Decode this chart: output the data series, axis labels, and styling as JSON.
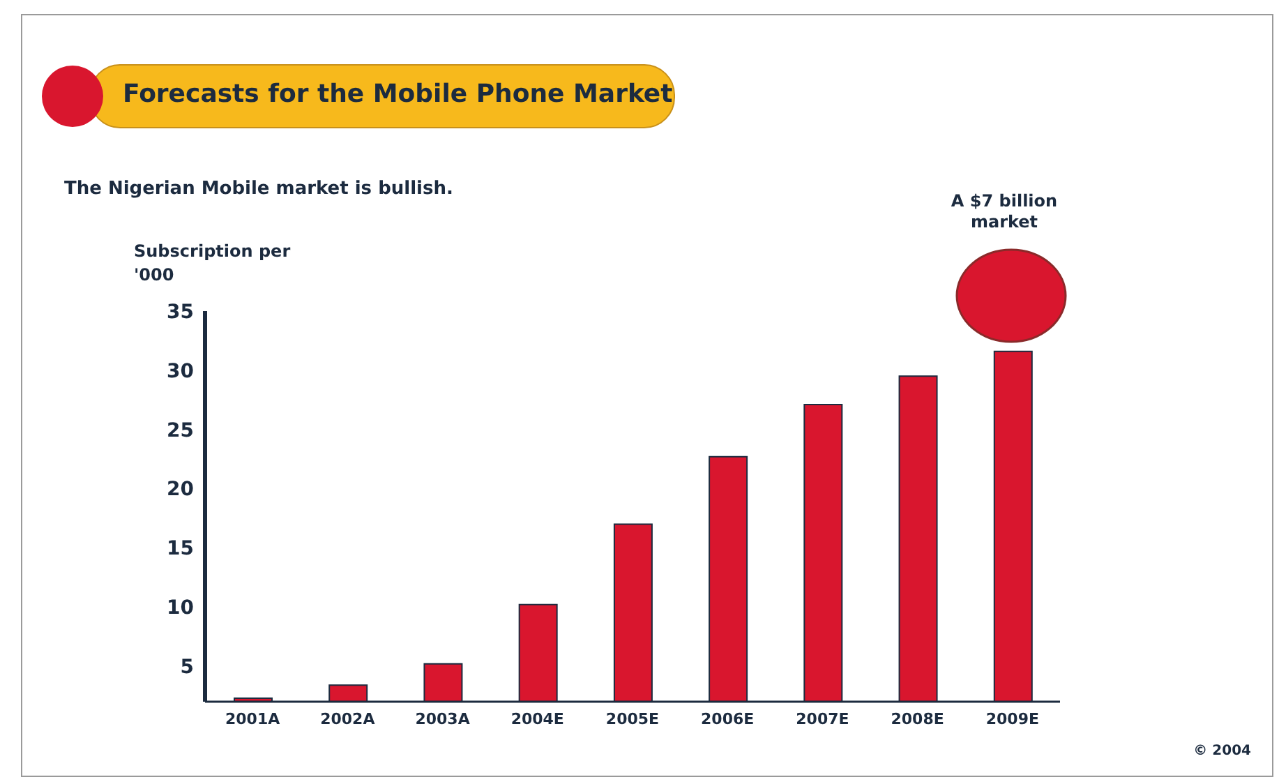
{
  "chart_data": {
    "type": "bar",
    "title": "Forecasts for the Mobile Phone Market",
    "subtitle": "The Nigerian Mobile market is bullish.",
    "ylabel": "Subscription per '000",
    "categories": [
      "2001A",
      "2002A",
      "2003A",
      "2004E",
      "2005E",
      "2006E",
      "2007E",
      "2008E",
      "2009E"
    ],
    "values": [
      2.3,
      3.4,
      5.2,
      10.2,
      17,
      22.7,
      27.1,
      29.5,
      31.6
    ],
    "color": "#d9162e",
    "ylim": [
      2,
      35
    ],
    "yticks": [
      5,
      10,
      15,
      20,
      25,
      30,
      35
    ],
    "grid": false,
    "legend": false,
    "annotations": [
      "A $7 billion market",
      "© 2004"
    ]
  }
}
